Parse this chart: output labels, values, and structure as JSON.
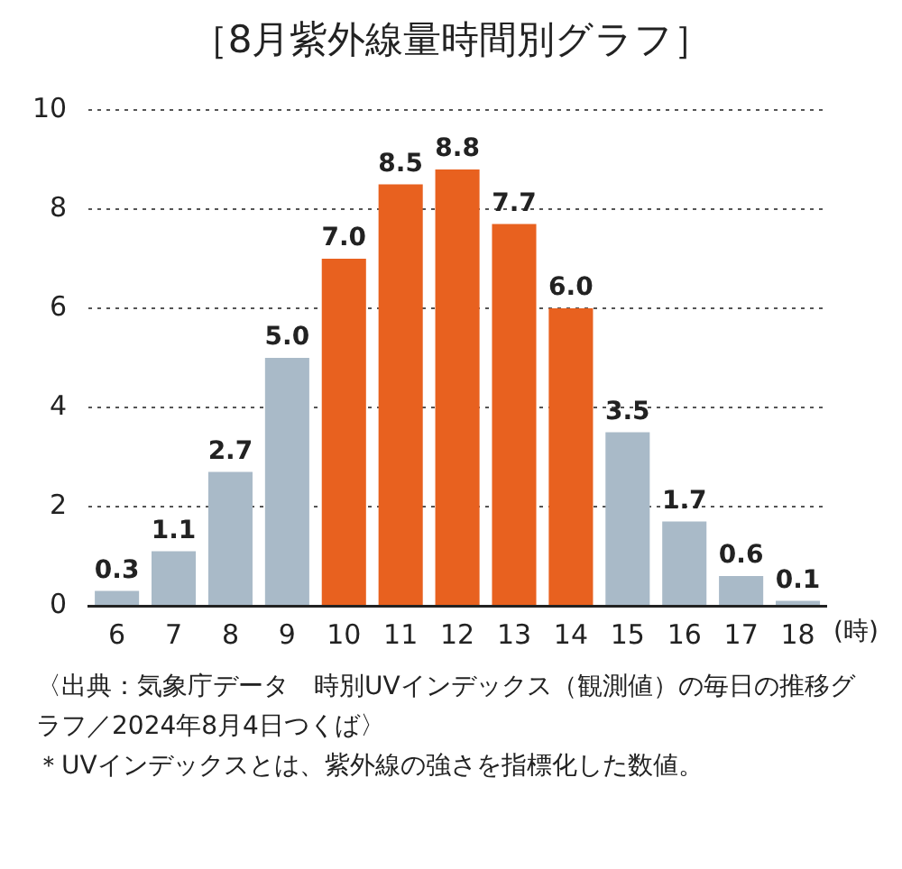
{
  "chart_data": {
    "type": "bar",
    "title": "［8月紫外線量時間別グラフ］",
    "xlabel": "(時)",
    "categories": [
      "6",
      "7",
      "8",
      "9",
      "10",
      "11",
      "12",
      "13",
      "14",
      "15",
      "16",
      "17",
      "18"
    ],
    "values": [
      0.3,
      1.1,
      2.7,
      5.0,
      7.0,
      8.5,
      8.8,
      7.7,
      6.0,
      3.5,
      1.7,
      0.6,
      0.1
    ],
    "value_labels": [
      "0.3",
      "1.1",
      "2.7",
      "5.0",
      "7.0",
      "8.5",
      "8.8",
      "7.7",
      "6.0",
      "3.5",
      "1.7",
      "0.6",
      "0.1"
    ],
    "colors": [
      "#a9bac8",
      "#a9bac8",
      "#a9bac8",
      "#a9bac8",
      "#e8611f",
      "#e8611f",
      "#e8611f",
      "#e8611f",
      "#e8611f",
      "#a9bac8",
      "#a9bac8",
      "#a9bac8",
      "#a9bac8"
    ],
    "ylim": [
      0,
      10
    ],
    "yticks": [
      0,
      2,
      4,
      6,
      8,
      10
    ],
    "grid": "y",
    "legend": false,
    "annotations": [
      "〈出典：気象庁データ　時別UVインデックス（観測値）の毎日の推移グラフ／2024年8月4日つくば〉",
      "＊UVインデックスとは、紫外線の強さを指標化した数値。"
    ]
  }
}
